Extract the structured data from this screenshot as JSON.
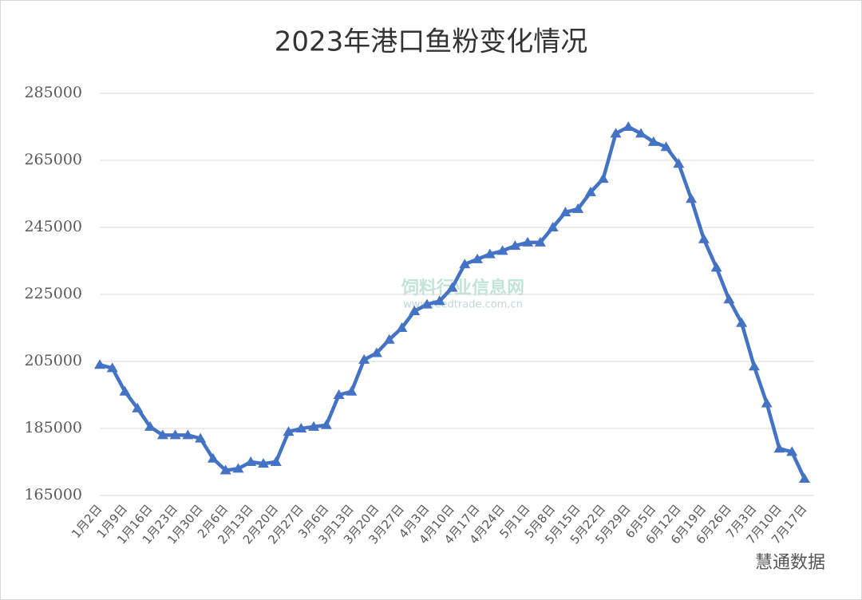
{
  "chart_data": {
    "type": "line",
    "title": "2023年港口鱼粉变化情况",
    "categories": [
      "1月2日",
      null,
      "1月9日",
      null,
      "1月16日",
      null,
      "1月23日",
      null,
      "1月30日",
      null,
      "2月6日",
      null,
      "2月13日",
      null,
      "2月20日",
      null,
      "2月27日",
      null,
      "3月6日",
      null,
      "3月13日",
      null,
      "3月20日",
      null,
      "3月27日",
      null,
      "4月3日",
      null,
      "4月10日",
      null,
      "4月17日",
      null,
      "4月24日",
      null,
      "5月1日",
      null,
      "5月8日",
      null,
      "5月15日",
      null,
      "5月22日",
      null,
      "5月29日",
      null,
      "6月5日",
      null,
      "6月12日",
      null,
      "6月19日",
      null,
      "6月26日",
      null,
      "7月3日",
      null,
      "7月10日",
      null,
      "7月17日"
    ],
    "series": [
      {
        "name": "港口鱼粉",
        "color": "#4472c4",
        "values": [
          204000,
          203000,
          196000,
          191000,
          185500,
          183000,
          183000,
          183000,
          182000,
          176000,
          172500,
          173000,
          175000,
          174500,
          175000,
          184000,
          185000,
          185500,
          186000,
          195000,
          196000,
          205500,
          207500,
          211500,
          215000,
          220000,
          222000,
          223000,
          227000,
          234000,
          235500,
          237000,
          238000,
          239500,
          240500,
          240500,
          245000,
          249500,
          250500,
          255500,
          259500,
          273000,
          275000,
          273000,
          270500,
          269000,
          264000,
          253500,
          241500,
          233000,
          223500,
          216500,
          203500,
          192500,
          179000,
          178000,
          170000
        ]
      }
    ],
    "ylim": [
      165000,
      285000
    ],
    "yticks": [
      165000,
      185000,
      205000,
      225000,
      245000,
      265000,
      285000
    ],
    "grid": true,
    "marker": "triangle",
    "annotations": [
      "饲料行业信息网",
      "www.feedtrade.com.cn",
      "慧通数据"
    ]
  }
}
